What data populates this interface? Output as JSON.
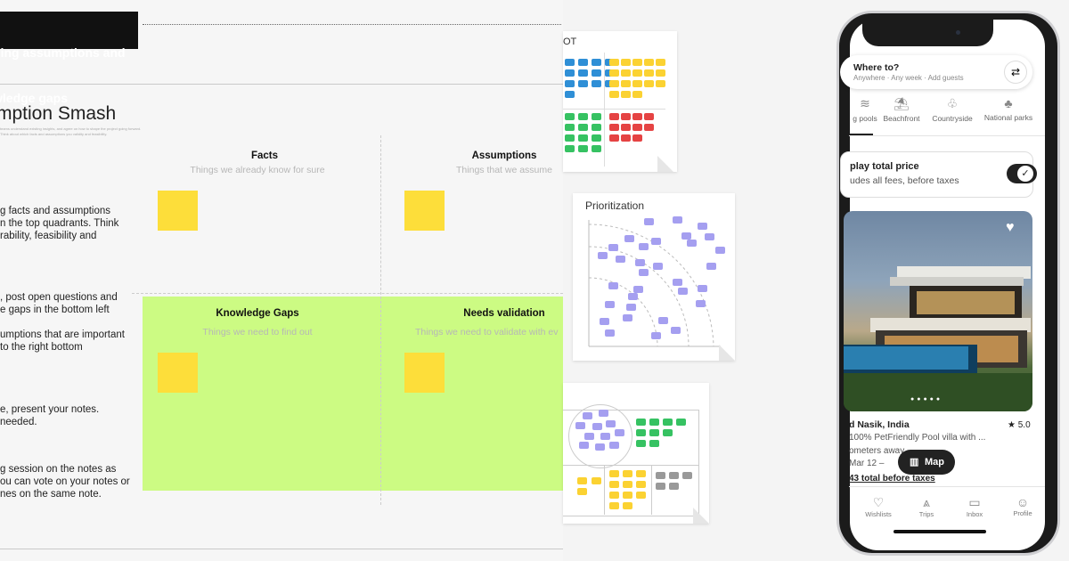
{
  "board": {
    "banner_line1": "ping assumptions and",
    "banner_line2": "wledge gaps",
    "title": "mption Smash",
    "subtitle": "teams understand existing insights, and agree on how to shape the project going forward. Think about which facts and assumptions you validity and feasibility.",
    "instructions": [
      "g facts and assumptions\nn the top quadrants. Think\nrability, feasibility and",
      ", post open questions and\ne gaps in the bottom left",
      "umptions that are important\nto the right bottom",
      "e, present your notes.\nneeded.",
      "g session on the notes as\nou can vote on your notes or\nnes on the same note."
    ],
    "quadrants": {
      "facts": {
        "title": "Facts",
        "subtitle": "Things we already know for sure"
      },
      "assumptions": {
        "title": "Assumptions",
        "subtitle": "Things that we assume"
      },
      "gaps": {
        "title": "Knowledge Gaps",
        "subtitle": "Things we need to find out"
      },
      "validation": {
        "title": "Needs validation",
        "subtitle": "Things we need to validate with ev"
      }
    }
  },
  "cards": {
    "swot_label": "OT",
    "prioritization_title": "Prioritization"
  },
  "phone": {
    "search_title": "Where to?",
    "search_subtitle": "Anywhere · Any week · Add guests",
    "categories": [
      {
        "label": "g pools",
        "icon": "pool-icon"
      },
      {
        "label": "Beachfront",
        "icon": "beach-icon"
      },
      {
        "label": "Countryside",
        "icon": "countryside-icon"
      },
      {
        "label": "National parks",
        "icon": "national-park-icon"
      }
    ],
    "toggle_title": "play total price",
    "toggle_subtitle": "udes all fees, before taxes",
    "listing": {
      "location": "d Nasik, India",
      "rating": "5.0",
      "description": "100% PetFriendly Pool villa with ...",
      "distance": "ometers away",
      "dates": "Mar 12 –",
      "price": "43 total before taxes"
    },
    "map_label": "Map",
    "nav": [
      "Wishlists",
      "Trips",
      "Inbox",
      "Profile"
    ],
    "colors": {
      "accent": "#222222"
    }
  }
}
